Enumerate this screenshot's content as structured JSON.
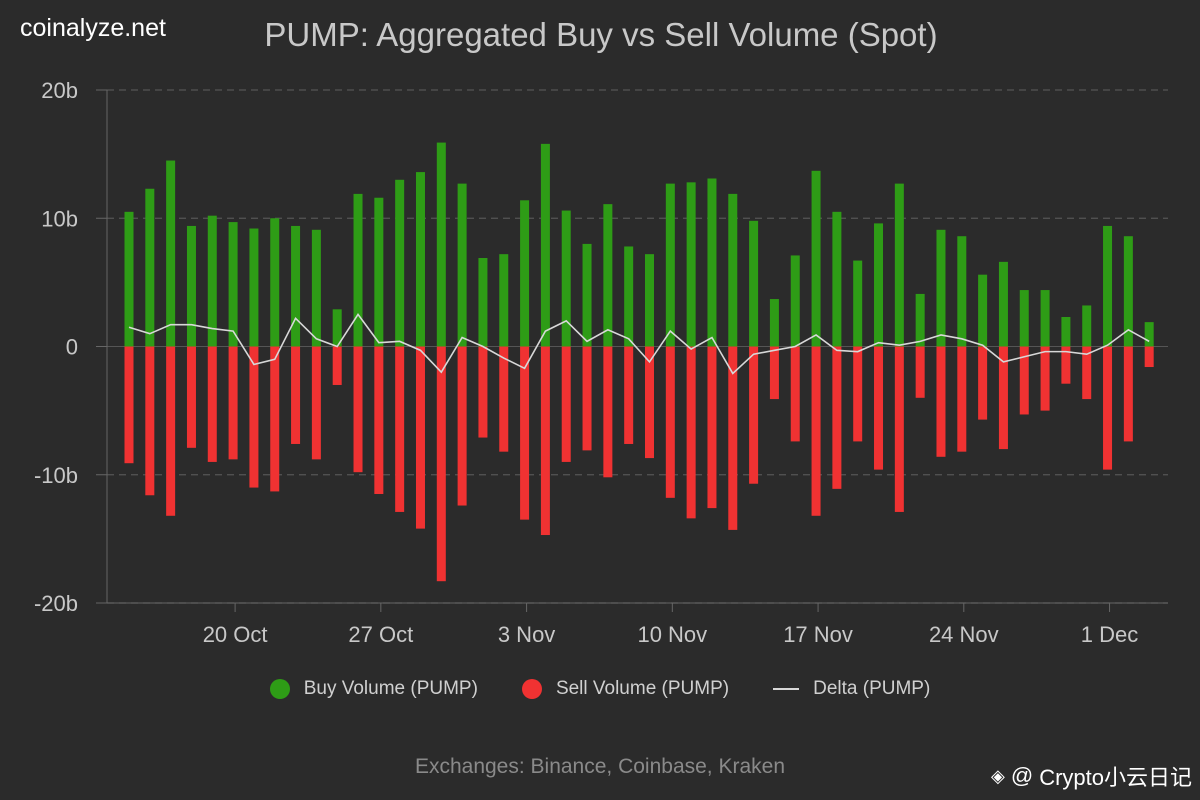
{
  "brand": "coinalyze.net",
  "footer": "Exchanges: Binance, Coinbase, Kraken",
  "watermark": {
    "prefix": "@",
    "text": "Crypto小云日记",
    "logo_icon": "binance-icon"
  },
  "colors": {
    "buy": "#2e9c16",
    "sell": "#f03232",
    "delta": "#d8d8d8",
    "grid": "#555555",
    "axis": "#c8c8c8"
  },
  "chart_data": {
    "type": "bar",
    "title": "PUMP: Aggregated Buy vs Sell Volume (Spot)",
    "ylim": [
      -20,
      20
    ],
    "yticks": [
      20,
      10,
      0,
      -10,
      -20
    ],
    "ytick_labels": [
      "20b",
      "10b",
      "0",
      "-10b",
      "-20b"
    ],
    "xtick_labels": [
      "20 Oct",
      "27 Oct",
      "3 Nov",
      "10 Nov",
      "17 Nov",
      "24 Nov",
      "1 Dec"
    ],
    "xtick_index": [
      5,
      12,
      19,
      26,
      33,
      40,
      47
    ],
    "grid": true,
    "legend_position": "bottom",
    "series": [
      {
        "name": "Buy Volume (PUMP)",
        "values": [
          10.5,
          12.3,
          14.5,
          9.4,
          10.2,
          9.7,
          9.2,
          10.0,
          9.4,
          9.1,
          2.9,
          11.9,
          11.6,
          13.0,
          13.6,
          15.9,
          12.7,
          6.9,
          7.2,
          11.4,
          15.8,
          10.6,
          8.0,
          11.1,
          7.8,
          7.2,
          12.7,
          12.8,
          13.1,
          11.9,
          9.8,
          3.7,
          7.1,
          13.7,
          10.5,
          6.7,
          9.6,
          12.7,
          4.1,
          9.1,
          8.6,
          5.6,
          6.6,
          4.4,
          4.4,
          2.3,
          3.2,
          9.4,
          8.6,
          1.9
        ]
      },
      {
        "name": "Sell Volume (PUMP)",
        "values": [
          -9.1,
          -11.6,
          -13.2,
          -7.9,
          -9.0,
          -8.8,
          -11.0,
          -11.3,
          -7.6,
          -8.8,
          -3.0,
          -9.8,
          -11.5,
          -12.9,
          -14.2,
          -18.3,
          -12.4,
          -7.1,
          -8.2,
          -13.5,
          -14.7,
          -9.0,
          -8.1,
          -10.2,
          -7.6,
          -8.7,
          -11.8,
          -13.4,
          -12.6,
          -14.3,
          -10.7,
          -4.1,
          -7.4,
          -13.2,
          -11.1,
          -7.4,
          -9.6,
          -12.9,
          -4.0,
          -8.6,
          -8.2,
          -5.7,
          -8.0,
          -5.3,
          -5.0,
          -2.9,
          -4.1,
          -9.6,
          -7.4,
          -1.6
        ]
      },
      {
        "name": "Delta (PUMP)",
        "values": [
          1.5,
          1.0,
          1.7,
          1.7,
          1.4,
          1.2,
          -1.4,
          -1.0,
          2.2,
          0.6,
          0.0,
          2.5,
          0.3,
          0.4,
          -0.3,
          -2.0,
          0.7,
          0.0,
          -0.9,
          -1.7,
          1.2,
          2.0,
          0.4,
          1.3,
          0.6,
          -1.2,
          1.2,
          -0.2,
          0.7,
          -2.1,
          -0.6,
          -0.3,
          0.0,
          0.9,
          -0.3,
          -0.4,
          0.3,
          0.1,
          0.4,
          0.9,
          0.6,
          0.1,
          -1.2,
          -0.8,
          -0.4,
          -0.4,
          -0.6,
          0.1,
          1.3,
          0.4
        ]
      }
    ]
  }
}
